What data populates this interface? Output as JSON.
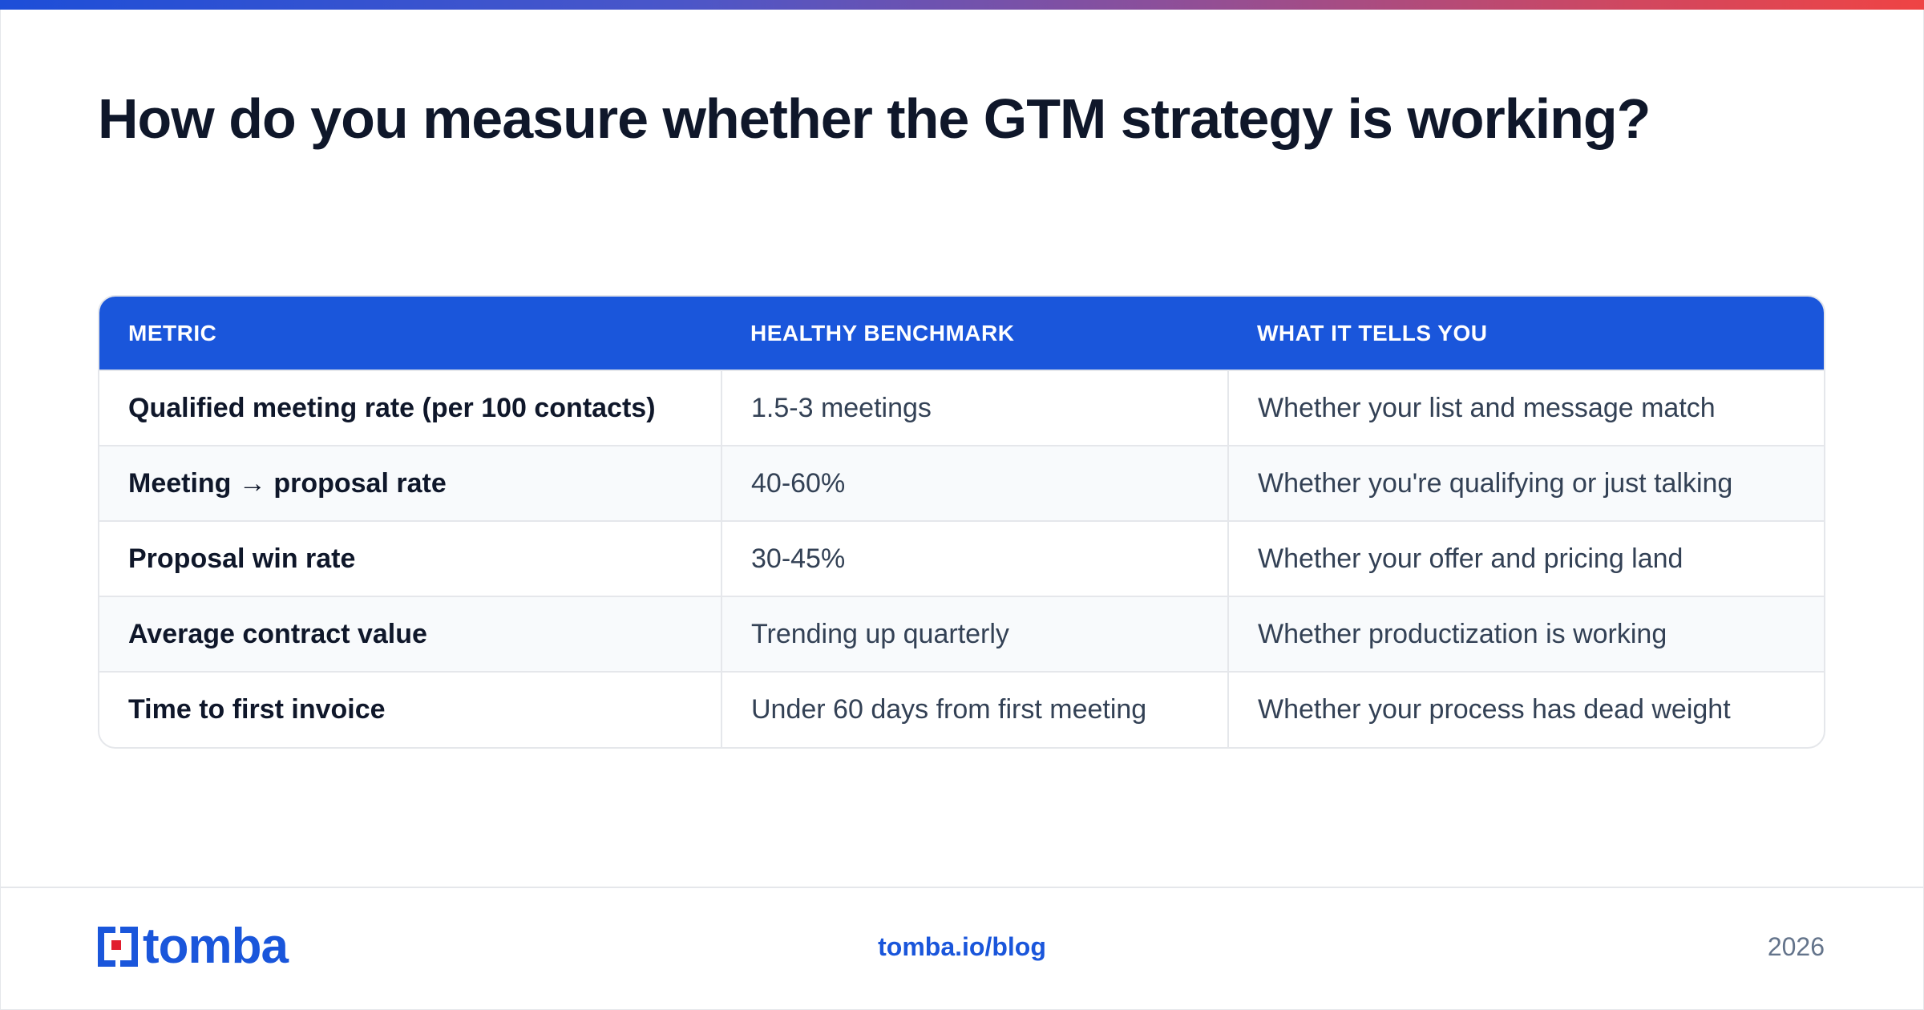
{
  "title": "How do you measure whether the GTM strategy is working?",
  "table": {
    "headers": [
      "METRIC",
      "HEALTHY BENCHMARK",
      "WHAT IT TELLS YOU"
    ],
    "rows": [
      [
        "Qualified meeting rate (per 100 contacts)",
        "1.5-3 meetings",
        "Whether your list and message match"
      ],
      [
        "Meeting → proposal rate",
        "40-60%",
        "Whether you're qualifying or just talking"
      ],
      [
        "Proposal win rate",
        "30-45%",
        "Whether your offer and pricing land"
      ],
      [
        "Average contract value",
        "Trending up quarterly",
        "Whether productization is working"
      ],
      [
        "Time to first invoice",
        "Under 60 days from first meeting",
        "Whether your process has dead weight"
      ]
    ]
  },
  "footer": {
    "logo_text": "tomba",
    "link": "tomba.io/blog",
    "year": "2026"
  },
  "colors": {
    "accent": "#1a56db",
    "title": "#0f172a",
    "logo_red": "#e11d2e"
  },
  "icons": {
    "logo_mark": "tomba-logo-icon"
  }
}
